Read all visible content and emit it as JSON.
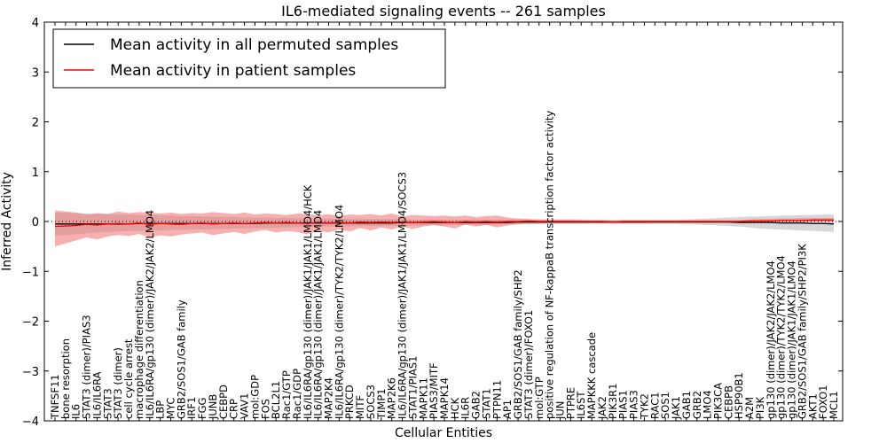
{
  "chart_data": {
    "type": "line",
    "title": "IL6-mediated signaling events -- 261 samples",
    "xlabel": "Cellular Entities",
    "ylabel": "Inferred Activity",
    "ylim": [
      -4,
      4
    ],
    "yticks": [
      -4,
      -3,
      -2,
      -1,
      0,
      1,
      2,
      3,
      4
    ],
    "ytick_labels": [
      "−4",
      "−3",
      "−2",
      "−1",
      "0",
      "1",
      "2",
      "3",
      "4"
    ],
    "grid": false,
    "legend_position": "top-left",
    "categories": [
      "TNFSF11",
      "bone resorption",
      "IL6",
      "STAT3 (dimer)/PIAS3",
      "IL6/IL6RA",
      "STAT3",
      "STAT3 (dimer)",
      "cell cycle arrest",
      "macrophage differentiation",
      "IL6/IL6RA/gp130 (dimer)/JAK2/JAK2/LMO4",
      "LBP",
      "MYC",
      "GRB2/SOS1/GAB family",
      "IRF1",
      "FGG",
      "JUNB",
      "CEBPD",
      "CRP",
      "VAV1",
      "mol:GDP",
      "FOS",
      "BCL2L1",
      "Rac1/GTP",
      "Rac1/GDP",
      "IL6/IL6RA/gp130 (dimer)/JAK1/JAK1/LMO4/HCK",
      "IL6/IL6RA/gp130 (dimer)/JAK1/JAK1/LMO4",
      "MAP2K4",
      "IL6/IL6RA/gp130 (dimer)/TYK2/TYK2/LMO4",
      "PRKCD",
      "MITF",
      "SOCS3",
      "TIMP1",
      "MAP2K6",
      "IL6/IL6RA/gp130 (dimer)/JAK1/JAK1/LMO4/SOCS3",
      "STAT1/PIAS1",
      "MAPK11",
      "PIAS3/MITF",
      "MAPK14",
      "HCK",
      "IL6R",
      "GAB2",
      "STAT1",
      "PTPN11",
      "AP1",
      "GRB2/SOS1/GAB family/SHP2",
      "STAT3 (dimer)/FOXO1",
      "mol:GTP",
      "positive regulation of NF-kappaB transcription factor activity",
      "JUN",
      "PTPRE",
      "IL6ST",
      "MAPKKK cascade",
      "JAK2",
      "PIK3R1",
      "PIAS1",
      "PIAS3",
      "TYK2",
      "RAC1",
      "SOS1",
      "JAK1",
      "GAB1",
      "GRB2",
      "LMO4",
      "PIK3CA",
      "CEBPB",
      "HSP90B1",
      "A2M",
      "PI3K",
      "gp130 (dimer)/JAK2/JAK2/LMO4",
      "gp130 (dimer)/TYK2/TYK2/LMO4",
      "gp130 (dimer)/JAK1/JAK1/LMO4",
      "GRB2/SOS1/GAB family/SHP2/PI3K",
      "AKT1",
      "FOXO1",
      "MCL1"
    ],
    "series": [
      {
        "name": "Mean activity in all permuted samples",
        "color": "#000000",
        "values": [
          -0.05,
          -0.05,
          -0.05,
          -0.05,
          -0.05,
          -0.05,
          -0.05,
          -0.05,
          -0.04,
          -0.04,
          -0.04,
          -0.04,
          -0.04,
          -0.04,
          -0.04,
          -0.04,
          -0.04,
          -0.04,
          -0.04,
          -0.04,
          -0.03,
          -0.03,
          -0.03,
          -0.03,
          -0.03,
          -0.03,
          -0.03,
          -0.03,
          -0.03,
          -0.03,
          -0.03,
          -0.03,
          -0.03,
          -0.02,
          -0.02,
          -0.02,
          -0.02,
          -0.02,
          -0.02,
          -0.02,
          -0.02,
          -0.02,
          -0.02,
          -0.02,
          -0.01,
          -0.01,
          -0.01,
          -0.01,
          -0.01,
          -0.01,
          -0.01,
          -0.01,
          -0.01,
          -0.01,
          -0.01,
          -0.01,
          -0.01,
          -0.01,
          -0.01,
          -0.01,
          -0.01,
          -0.01,
          -0.01,
          -0.01,
          -0.01,
          -0.02,
          -0.02,
          -0.02,
          -0.02,
          -0.03,
          -0.03,
          -0.03,
          -0.04,
          -0.04,
          -0.05
        ],
        "band": {
          "lower": [
            -0.28,
            -0.27,
            -0.25,
            -0.24,
            -0.22,
            -0.21,
            -0.2,
            -0.19,
            -0.19,
            -0.18,
            -0.18,
            -0.17,
            -0.17,
            -0.16,
            -0.16,
            -0.15,
            -0.15,
            -0.14,
            -0.14,
            -0.13,
            -0.13,
            -0.12,
            -0.12,
            -0.11,
            -0.11,
            -0.11,
            -0.1,
            -0.1,
            -0.1,
            -0.09,
            -0.09,
            -0.09,
            -0.09,
            -0.08,
            -0.08,
            -0.08,
            -0.08,
            -0.07,
            -0.07,
            -0.07,
            -0.07,
            -0.07,
            -0.06,
            -0.06,
            -0.06,
            -0.06,
            -0.05,
            -0.05,
            -0.05,
            -0.05,
            -0.05,
            -0.05,
            -0.05,
            -0.05,
            -0.05,
            -0.05,
            -0.05,
            -0.05,
            -0.05,
            -0.05,
            -0.06,
            -0.06,
            -0.07,
            -0.08,
            -0.09,
            -0.1,
            -0.12,
            -0.14,
            -0.15,
            -0.16,
            -0.17,
            -0.18,
            -0.19,
            -0.2,
            -0.21
          ],
          "upper": [
            0.18,
            0.18,
            0.17,
            0.16,
            0.15,
            0.15,
            0.14,
            0.14,
            0.13,
            0.13,
            0.12,
            0.12,
            0.11,
            0.11,
            0.1,
            0.1,
            0.09,
            0.09,
            0.08,
            0.08,
            0.08,
            0.07,
            0.07,
            0.07,
            0.06,
            0.06,
            0.06,
            0.06,
            0.05,
            0.05,
            0.05,
            0.05,
            0.05,
            0.05,
            0.04,
            0.04,
            0.04,
            0.04,
            0.04,
            0.04,
            0.04,
            0.04,
            0.04,
            0.04,
            0.04,
            0.04,
            0.04,
            0.04,
            0.04,
            0.04,
            0.04,
            0.03,
            0.03,
            0.03,
            0.03,
            0.03,
            0.03,
            0.03,
            0.03,
            0.03,
            0.04,
            0.05,
            0.06,
            0.07,
            0.08,
            0.09,
            0.1,
            0.1,
            0.11,
            0.12,
            0.12,
            0.13,
            0.13,
            0.14,
            0.14
          ]
        }
      },
      {
        "name": "Mean activity in patient samples",
        "color": "#ff0000",
        "values": [
          -0.1,
          -0.09,
          -0.08,
          -0.06,
          -0.07,
          -0.05,
          -0.04,
          -0.05,
          -0.03,
          -0.06,
          -0.04,
          -0.05,
          -0.06,
          -0.04,
          -0.03,
          -0.05,
          -0.04,
          -0.03,
          -0.04,
          -0.03,
          -0.02,
          -0.03,
          -0.02,
          -0.03,
          -0.04,
          -0.02,
          -0.03,
          -0.02,
          -0.03,
          -0.01,
          -0.02,
          -0.01,
          -0.02,
          -0.01,
          -0.02,
          -0.01,
          0.0,
          -0.01,
          -0.02,
          0.0,
          -0.01,
          0.0,
          -0.01,
          0.0,
          0.0,
          0.01,
          0.0,
          0.0,
          0.0,
          0.0,
          0.0,
          0.0,
          0.0,
          -0.01,
          0.0,
          0.0,
          0.0,
          0.0,
          0.0,
          0.0,
          0.0,
          0.0,
          0.0,
          0.0,
          0.0,
          0.0,
          0.01,
          0.01,
          0.01,
          0.02,
          0.02,
          0.02,
          0.03,
          0.03,
          0.03
        ],
        "band": {
          "lower": [
            -0.5,
            -0.44,
            -0.38,
            -0.32,
            -0.36,
            -0.3,
            -0.27,
            -0.29,
            -0.25,
            -0.32,
            -0.28,
            -0.3,
            -0.26,
            -0.24,
            -0.22,
            -0.27,
            -0.24,
            -0.21,
            -0.25,
            -0.2,
            -0.17,
            -0.22,
            -0.19,
            -0.21,
            -0.26,
            -0.18,
            -0.22,
            -0.16,
            -0.2,
            -0.13,
            -0.18,
            -0.12,
            -0.16,
            -0.1,
            -0.15,
            -0.1,
            -0.07,
            -0.1,
            -0.14,
            -0.06,
            -0.1,
            -0.07,
            -0.12,
            -0.08,
            -0.05,
            -0.04,
            -0.04,
            -0.03,
            -0.03,
            -0.03,
            -0.03,
            -0.03,
            -0.03,
            -0.03,
            -0.03,
            -0.03,
            -0.03,
            -0.02,
            -0.02,
            -0.02,
            -0.02,
            -0.02,
            -0.02,
            -0.02,
            -0.02,
            -0.02,
            -0.01,
            -0.01,
            0.0,
            0.0,
            0.0,
            0.0,
            0.0,
            0.0,
            0.0
          ],
          "upper": [
            0.22,
            0.2,
            0.18,
            0.14,
            0.17,
            0.15,
            0.2,
            0.17,
            0.19,
            0.18,
            0.16,
            0.18,
            0.15,
            0.17,
            0.16,
            0.19,
            0.17,
            0.15,
            0.18,
            0.14,
            0.16,
            0.15,
            0.13,
            0.16,
            0.15,
            0.12,
            0.15,
            0.11,
            0.14,
            0.13,
            0.15,
            0.12,
            0.16,
            0.1,
            0.13,
            0.12,
            0.11,
            0.12,
            0.1,
            0.12,
            0.09,
            0.11,
            0.12,
            0.08,
            0.06,
            0.05,
            0.04,
            0.04,
            0.04,
            0.04,
            0.03,
            0.03,
            0.03,
            0.02,
            0.03,
            0.03,
            0.03,
            0.03,
            0.03,
            0.03,
            0.03,
            0.03,
            0.03,
            0.03,
            0.03,
            0.03,
            0.04,
            0.05,
            0.05,
            0.06,
            0.06,
            0.07,
            0.07,
            0.07,
            0.07
          ]
        }
      }
    ],
    "reference_line": {
      "y": 0,
      "style": "dotted"
    }
  }
}
